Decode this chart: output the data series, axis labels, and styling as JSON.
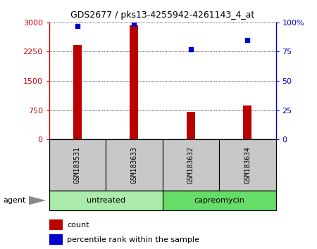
{
  "title": "GDS2677 / pks13-4255942-4261143_4_at",
  "samples": [
    "GSM183531",
    "GSM183633",
    "GSM183632",
    "GSM183634"
  ],
  "counts": [
    2420,
    2920,
    700,
    870
  ],
  "percentile_ranks": [
    97,
    99,
    77,
    85
  ],
  "bar_color": "#BB0000",
  "dot_color": "#0000CC",
  "left_yticks": [
    0,
    750,
    1500,
    2250,
    3000
  ],
  "right_yticks": [
    0,
    25,
    50,
    75,
    100
  ],
  "left_ylim": [
    0,
    3000
  ],
  "right_ylim": [
    0,
    100
  ],
  "left_ycolor": "#CC0000",
  "right_ycolor": "#0000CC",
  "agent_label": "agent",
  "legend_count_label": "count",
  "legend_pct_label": "percentile rank within the sample",
  "sample_box_color": "#C8C8C8",
  "untreated_color": "#AAEAAA",
  "capreomycin_color": "#66DD66",
  "bar_width": 0.15
}
